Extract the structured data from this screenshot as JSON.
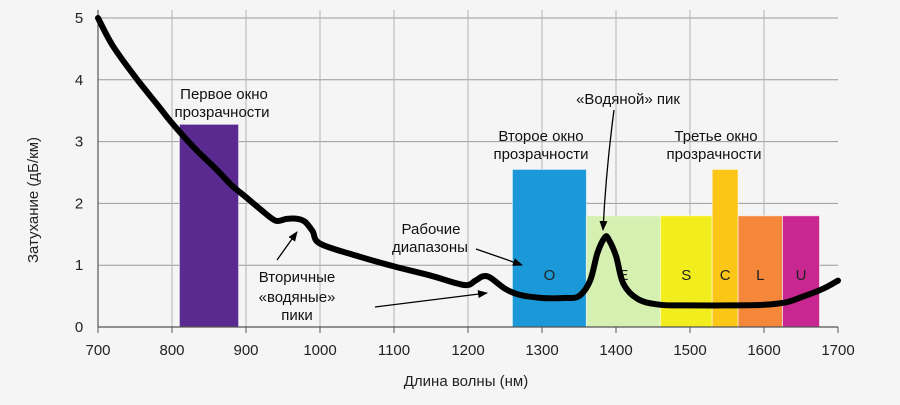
{
  "chart_data": {
    "type": "line",
    "title": "",
    "xlabel": "Длина волны (нм)",
    "ylabel": "Затухание (дБ/км)",
    "xlim": [
      700,
      1700
    ],
    "ylim": [
      0,
      5
    ],
    "x_ticks": [
      700,
      800,
      900,
      1000,
      1100,
      1200,
      1300,
      1400,
      1500,
      1600,
      1700
    ],
    "y_ticks": [
      0,
      1,
      2,
      3,
      4,
      5
    ],
    "grid": true,
    "series": [
      {
        "name": "",
        "color": "#000000",
        "x": [
          700,
          720,
          750,
          780,
          800,
          830,
          860,
          880,
          900,
          920,
          940,
          955,
          970,
          980,
          990,
          1000,
          1050,
          1100,
          1150,
          1195,
          1210,
          1220,
          1230,
          1250,
          1270,
          1300,
          1330,
          1350,
          1365,
          1375,
          1385,
          1390,
          1400,
          1410,
          1430,
          1460,
          1500,
          1550,
          1600,
          1630,
          1650,
          1680,
          1700
        ],
        "y": [
          5.0,
          4.55,
          4.05,
          3.6,
          3.3,
          2.9,
          2.55,
          2.3,
          2.1,
          1.9,
          1.72,
          1.75,
          1.75,
          1.7,
          1.55,
          1.35,
          1.15,
          0.98,
          0.83,
          0.68,
          0.75,
          0.82,
          0.8,
          0.62,
          0.52,
          0.47,
          0.47,
          0.5,
          0.75,
          1.2,
          1.45,
          1.42,
          1.15,
          0.7,
          0.45,
          0.36,
          0.35,
          0.35,
          0.36,
          0.4,
          0.48,
          0.62,
          0.75
        ]
      }
    ],
    "windows": [
      {
        "id": "first",
        "x0": 810,
        "x1": 890,
        "top": 3.28,
        "color": "#5b2a91",
        "letter": ""
      },
      {
        "id": "O",
        "x0": 1260,
        "x1": 1360,
        "top": 2.55,
        "color": "#1a98d8",
        "letter": "O"
      },
      {
        "id": "E",
        "x0": 1360,
        "x1": 1460,
        "top": 1.8,
        "color": "#d5f0b0",
        "letter": "E"
      },
      {
        "id": "S",
        "x0": 1460,
        "x1": 1530,
        "top": 1.8,
        "color": "#f2ed1c",
        "letter": "S"
      },
      {
        "id": "C",
        "x0": 1530,
        "x1": 1565,
        "top": 2.55,
        "color": "#fbc616",
        "letter": "C"
      },
      {
        "id": "L",
        "x0": 1565,
        "x1": 1625,
        "top": 1.8,
        "color": "#f5873a",
        "letter": "L"
      },
      {
        "id": "U",
        "x0": 1625,
        "x1": 1675,
        "top": 1.8,
        "color": "#c82690",
        "letter": "U"
      }
    ],
    "annotations": {
      "first_window": [
        "Первое окно",
        "прозрачности"
      ],
      "second_window": [
        "Второе окно",
        "прозрачности"
      ],
      "third_window": [
        "Третье окно",
        "прозрачности"
      ],
      "water_peak": "«Водяной» пик",
      "working_bands": [
        "Рабочие",
        "диапазоны"
      ],
      "secondary_peaks": [
        "Вторичные",
        "«водяные»",
        "пики"
      ]
    }
  }
}
